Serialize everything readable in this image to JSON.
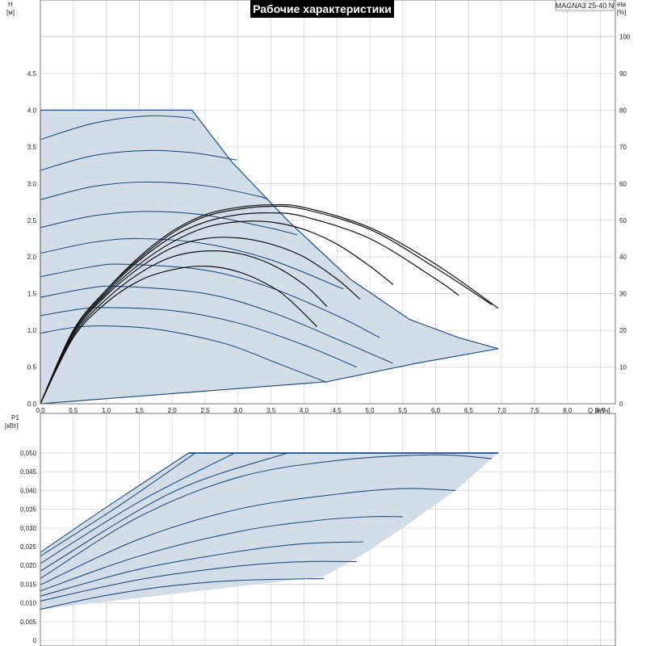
{
  "title": "Рабочие характеристики",
  "model": "MAGNA3 25-40 N",
  "colors": {
    "area_fill": "#d3dde8",
    "curve_blue": "#1e4f86",
    "curve_black": "#111111",
    "grid": "#cfcfcf",
    "title_bg": "#000000"
  },
  "chart_data": [
    {
      "type": "line",
      "title": "Рабочие характеристики",
      "ylabel": "H",
      "ylabel_unit": "[м]",
      "y2label": "eta",
      "y2label_unit": "[%]",
      "xlabel": "Q [м³/ч]",
      "xlim": [
        0,
        9
      ],
      "ylim": [
        0,
        5.5
      ],
      "y2lim": [
        0,
        110
      ],
      "grid": true,
      "x_ticks": [
        "0,0",
        "0,5",
        "1,0",
        "1,5",
        "2,0",
        "2,5",
        "3,0",
        "3,5",
        "4,0",
        "4,5",
        "5,0",
        "5,5",
        "6,0",
        "6,5",
        "7,0",
        "7,5",
        "8,0",
        "8,5"
      ],
      "y_ticks": [
        "0.0",
        "0.5",
        "1.0",
        "1.5",
        "2.0",
        "2.5",
        "3.0",
        "3.5",
        "4.0",
        "4.5"
      ],
      "y2_ticks": [
        "0",
        "10",
        "20",
        "30",
        "40",
        "50",
        "60",
        "70",
        "80",
        "90",
        "100"
      ],
      "envelope": [
        [
          0,
          4.0
        ],
        [
          2.3,
          4.0
        ],
        [
          2.9,
          3.3
        ],
        [
          3.75,
          2.5
        ],
        [
          4.7,
          1.7
        ],
        [
          5.6,
          1.15
        ],
        [
          6.35,
          0.9
        ],
        [
          6.95,
          0.75
        ],
        [
          5.7,
          0.55
        ],
        [
          4.35,
          0.3
        ],
        [
          0,
          0
        ]
      ],
      "series": [
        {
          "kind": "H",
          "points": [
            [
              0,
              3.6
            ],
            [
              0.8,
              3.82
            ],
            [
              1.6,
              3.92
            ],
            [
              2.2,
              3.9
            ],
            [
              2.35,
              3.86
            ]
          ]
        },
        {
          "kind": "H",
          "points": [
            [
              0,
              3.18
            ],
            [
              0.8,
              3.38
            ],
            [
              1.6,
              3.45
            ],
            [
              2.3,
              3.42
            ],
            [
              2.98,
              3.32
            ]
          ]
        },
        {
          "kind": "H",
          "points": [
            [
              0,
              2.78
            ],
            [
              0.8,
              2.96
            ],
            [
              1.6,
              3.02
            ],
            [
              2.5,
              2.97
            ],
            [
              3.3,
              2.83
            ],
            [
              3.45,
              2.78
            ]
          ]
        },
        {
          "kind": "H",
          "points": [
            [
              0,
              2.4
            ],
            [
              0.8,
              2.56
            ],
            [
              1.6,
              2.62
            ],
            [
              2.5,
              2.57
            ],
            [
              3.5,
              2.39
            ],
            [
              3.9,
              2.3
            ]
          ]
        },
        {
          "kind": "H",
          "points": [
            [
              0,
              2.05
            ],
            [
              0.8,
              2.2
            ],
            [
              1.5,
              2.25
            ],
            [
              2.5,
              2.18
            ],
            [
              3.5,
              1.96
            ],
            [
              4.5,
              1.6
            ],
            [
              4.55,
              1.58
            ]
          ]
        },
        {
          "kind": "H",
          "points": [
            [
              0,
              1.73
            ],
            [
              0.8,
              1.87
            ],
            [
              1.3,
              1.9
            ],
            [
              2.5,
              1.82
            ],
            [
              3.5,
              1.58
            ],
            [
              4.5,
              1.2
            ],
            [
              5.15,
              0.9
            ]
          ]
        },
        {
          "kind": "H",
          "points": [
            [
              0,
              1.45
            ],
            [
              0.7,
              1.57
            ],
            [
              1.2,
              1.6
            ],
            [
              2.5,
              1.5
            ],
            [
              3.5,
              1.25
            ],
            [
              4.5,
              0.88
            ],
            [
              5.35,
              0.55
            ]
          ]
        },
        {
          "kind": "H",
          "points": [
            [
              0,
              1.2
            ],
            [
              0.6,
              1.29
            ],
            [
              1.0,
              1.31
            ],
            [
              2.0,
              1.27
            ],
            [
              3.0,
              1.1
            ],
            [
              4.0,
              0.8
            ],
            [
              4.8,
              0.5
            ]
          ]
        },
        {
          "kind": "H",
          "points": [
            [
              0,
              0.96
            ],
            [
              0.5,
              1.04
            ],
            [
              1.0,
              1.06
            ],
            [
              1.8,
              1.01
            ],
            [
              2.8,
              0.82
            ],
            [
              3.6,
              0.55
            ],
            [
              4.35,
              0.29
            ]
          ]
        },
        {
          "kind": "eta",
          "points": [
            [
              0,
              0
            ],
            [
              0.5,
              20
            ],
            [
              1.0,
              31
            ],
            [
              1.5,
              40
            ],
            [
              2.0,
              47
            ],
            [
              2.5,
              51.5
            ],
            [
              3.0,
              53.5
            ],
            [
              3.5,
              54.2
            ],
            [
              4.0,
              53.5
            ],
            [
              5.0,
              48
            ],
            [
              6.0,
              38
            ],
            [
              6.95,
              26
            ]
          ]
        },
        {
          "kind": "eta",
          "points": [
            [
              0,
              0
            ],
            [
              0.5,
              20
            ],
            [
              1.0,
              31
            ],
            [
              1.5,
              39.5
            ],
            [
              2.0,
              46.5
            ],
            [
              2.5,
              51
            ],
            [
              3.0,
              53
            ],
            [
              3.5,
              53.8
            ],
            [
              4.0,
              53
            ],
            [
              5.0,
              47.5
            ],
            [
              6.0,
              37
            ],
            [
              6.85,
              27
            ]
          ]
        },
        {
          "kind": "eta",
          "points": [
            [
              0,
              0
            ],
            [
              0.5,
              19.5
            ],
            [
              1.0,
              30.5
            ],
            [
              1.5,
              39
            ],
            [
              2.0,
              45.5
            ],
            [
              2.5,
              49.5
            ],
            [
              3.0,
              51.5
            ],
            [
              3.5,
              52
            ],
            [
              4.0,
              51
            ],
            [
              5.0,
              45
            ],
            [
              6.0,
              34
            ],
            [
              6.35,
              29.5
            ]
          ]
        },
        {
          "kind": "eta",
          "points": [
            [
              0,
              0
            ],
            [
              0.5,
              19.5
            ],
            [
              1.0,
              30
            ],
            [
              1.5,
              38
            ],
            [
              2.0,
              44
            ],
            [
              2.5,
              48
            ],
            [
              3.0,
              49.6
            ],
            [
              3.5,
              49.5
            ],
            [
              4.0,
              47.5
            ],
            [
              4.5,
              43.5
            ],
            [
              5.0,
              37.5
            ],
            [
              5.35,
              32.5
            ]
          ]
        },
        {
          "kind": "eta",
          "points": [
            [
              0,
              0
            ],
            [
              0.5,
              19
            ],
            [
              1.0,
              29.5
            ],
            [
              1.5,
              37
            ],
            [
              2.0,
              42.5
            ],
            [
              2.5,
              45
            ],
            [
              3.0,
              45.2
            ],
            [
              3.5,
              43.5
            ],
            [
              4.0,
              40
            ],
            [
              4.5,
              34
            ],
            [
              4.85,
              28.5
            ]
          ]
        },
        {
          "kind": "eta",
          "points": [
            [
              0,
              0
            ],
            [
              0.5,
              18.5
            ],
            [
              1.0,
              28.5
            ],
            [
              1.5,
              35.5
            ],
            [
              2.0,
              40
            ],
            [
              2.5,
              41.6
            ],
            [
              3.0,
              41
            ],
            [
              3.5,
              38
            ],
            [
              4.0,
              32.5
            ],
            [
              4.35,
              26.5
            ]
          ]
        },
        {
          "kind": "eta",
          "points": [
            [
              0,
              0
            ],
            [
              0.5,
              18
            ],
            [
              1.0,
              27.5
            ],
            [
              1.5,
              33.5
            ],
            [
              2.0,
              36.5
            ],
            [
              2.5,
              37.5
            ],
            [
              3.0,
              36
            ],
            [
              3.5,
              32
            ],
            [
              3.8,
              28
            ],
            [
              4.2,
              21
            ]
          ]
        }
      ]
    },
    {
      "type": "line",
      "ylabel": "P1",
      "ylabel_unit": "[кВт]",
      "xlim": [
        0,
        9
      ],
      "ylim": [
        0,
        0.055
      ],
      "grid": true,
      "y_ticks": [
        "0",
        "0,005",
        "0,010",
        "0,015",
        "0,020",
        "0,025",
        "0,030",
        "0,035",
        "0,040",
        "0,045",
        "0,050"
      ],
      "envelope": [
        [
          0,
          0.0235
        ],
        [
          2.25,
          0.05
        ],
        [
          6.95,
          0.05
        ],
        [
          6.3,
          0.04
        ],
        [
          5.5,
          0.03
        ],
        [
          4.9,
          0.023
        ],
        [
          4.3,
          0.017
        ],
        [
          0,
          0.0083
        ]
      ],
      "series": [
        {
          "kind": "P1",
          "points": [
            [
              0,
              0.0235
            ],
            [
              1.0,
              0.0355
            ],
            [
              2.25,
              0.05
            ]
          ]
        },
        {
          "kind": "P1",
          "points": [
            [
              0,
              0.0225
            ],
            [
              1.2,
              0.036
            ],
            [
              2.35,
              0.05
            ]
          ]
        },
        {
          "kind": "P1",
          "points": [
            [
              0,
              0.0205
            ],
            [
              1.5,
              0.037
            ],
            [
              2.95,
              0.05
            ]
          ]
        },
        {
          "kind": "P1",
          "points": [
            [
              0,
              0.0185
            ],
            [
              2.0,
              0.0395
            ],
            [
              3.75,
              0.05
            ]
          ]
        },
        {
          "kind": "P1",
          "points": [
            [
              0,
              0.0165
            ],
            [
              1.5,
              0.033
            ],
            [
              3.0,
              0.0435
            ],
            [
              4.5,
              0.048
            ],
            [
              6.0,
              0.0495
            ],
            [
              6.85,
              0.0485
            ]
          ]
        },
        {
          "kind": "P1",
          "points": [
            [
              0,
              0.0148
            ],
            [
              1.5,
              0.027
            ],
            [
              3.0,
              0.035
            ],
            [
              4.5,
              0.039
            ],
            [
              5.5,
              0.0405
            ],
            [
              6.3,
              0.04
            ]
          ]
        },
        {
          "kind": "P1",
          "points": [
            [
              0,
              0.0132
            ],
            [
              1.5,
              0.0225
            ],
            [
              3.0,
              0.029
            ],
            [
              4.2,
              0.032
            ],
            [
              5.0,
              0.033
            ],
            [
              5.5,
              0.033
            ]
          ]
        },
        {
          "kind": "P1",
          "points": [
            [
              0,
              0.0118
            ],
            [
              1.5,
              0.019
            ],
            [
              3.0,
              0.0237
            ],
            [
              4.0,
              0.0258
            ],
            [
              4.9,
              0.0263
            ]
          ]
        },
        {
          "kind": "P1",
          "points": [
            [
              0,
              0.0105
            ],
            [
              1.5,
              0.0162
            ],
            [
              3.0,
              0.0198
            ],
            [
              4.0,
              0.021
            ],
            [
              4.8,
              0.021
            ]
          ]
        },
        {
          "kind": "P1",
          "points": [
            [
              0,
              0.0083
            ],
            [
              1.0,
              0.012
            ],
            [
              2.0,
              0.0146
            ],
            [
              3.0,
              0.016
            ],
            [
              4.3,
              0.0165
            ]
          ]
        }
      ]
    }
  ]
}
